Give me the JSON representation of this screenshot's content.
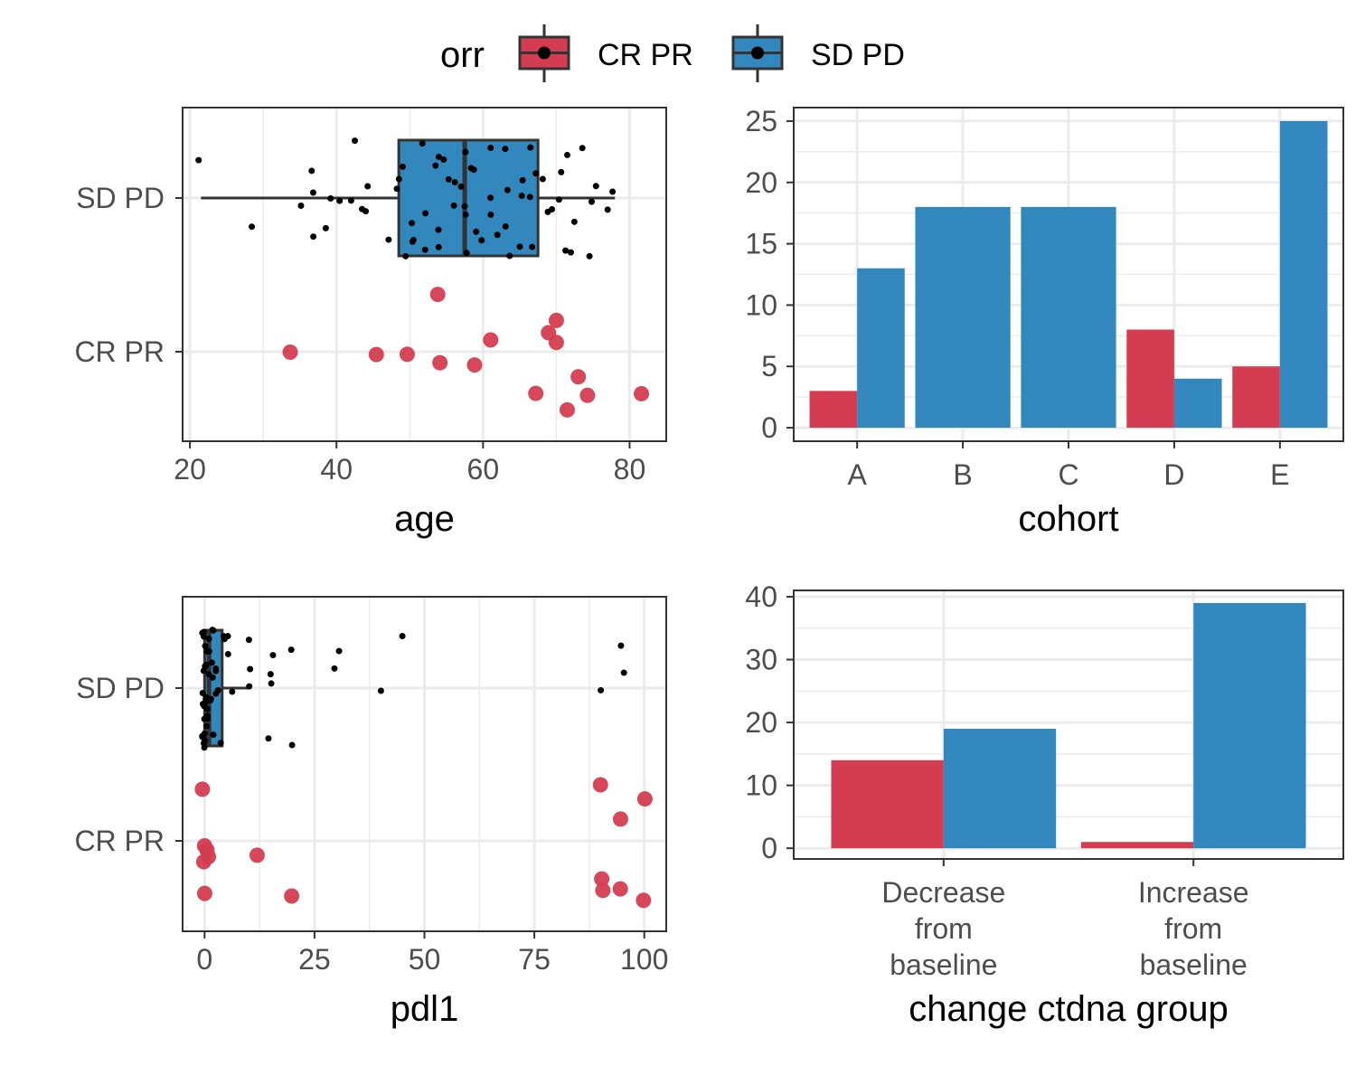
{
  "legend": {
    "title": "orr",
    "items": [
      {
        "label": "CR PR",
        "color": "#d43d51"
      },
      {
        "label": "SD PD",
        "color": "#3288bd"
      }
    ]
  },
  "colors": {
    "cr_pr": "#d43d51",
    "sd_pd": "#3288bd",
    "points_sd_pd": "#000000",
    "grid": "#ebebeb",
    "panel_border": "#333333"
  },
  "chart_data": [
    {
      "type": "boxplot",
      "xlabel": "age",
      "ylabel": "",
      "xlim": [
        19,
        85
      ],
      "xticks": [
        20,
        40,
        60,
        80
      ],
      "categories": [
        "CR PR",
        "SD PD"
      ],
      "boxes": [
        {
          "category": "SD PD",
          "min": 21.5,
          "q1": 48.5,
          "median": 57.5,
          "q3": 67.5,
          "max": 78
        }
      ],
      "points": [
        {
          "category": "CR PR",
          "values": [
            34,
            45,
            49.5,
            53.5,
            54.5,
            59,
            61.5,
            67.5,
            68.5,
            70,
            70.5,
            71,
            73,
            74.5,
            81.5
          ]
        },
        {
          "category": "SD PD",
          "values": [
            21.5,
            28,
            35,
            36.5,
            37,
            37,
            39,
            39.5,
            40,
            42,
            43,
            43,
            44,
            44.5,
            47,
            48,
            48,
            49,
            49.5,
            50,
            50,
            51,
            51.5,
            52,
            52,
            53,
            53.5,
            54,
            54.5,
            55,
            55,
            55.5,
            56,
            56.5,
            57,
            57,
            57.5,
            58,
            58.5,
            59,
            59,
            60,
            60.5,
            61,
            61.5,
            62,
            62.5,
            63,
            63.5,
            64,
            64.5,
            65,
            65.5,
            66,
            66.5,
            67,
            67.5,
            68,
            68.5,
            69,
            70,
            70.5,
            71,
            71.5,
            72,
            73,
            73.5,
            74,
            74.5,
            75,
            77,
            78
          ]
        }
      ]
    },
    {
      "type": "bar",
      "xlabel": "cohort",
      "ylabel": "",
      "categories": [
        "A",
        "B",
        "C",
        "D",
        "E"
      ],
      "ylim": [
        0,
        26
      ],
      "yticks": [
        0,
        5,
        10,
        15,
        20,
        25
      ],
      "series": [
        {
          "name": "CR PR",
          "values": [
            3,
            0,
            0,
            8,
            5
          ]
        },
        {
          "name": "SD PD",
          "values": [
            13,
            18,
            18,
            4,
            25
          ]
        }
      ]
    },
    {
      "type": "boxplot",
      "xlabel": "pdl1",
      "ylabel": "",
      "xlim": [
        -5,
        105
      ],
      "xticks": [
        0,
        25,
        50,
        75,
        100
      ],
      "categories": [
        "CR PR",
        "SD PD"
      ],
      "boxes": [
        {
          "category": "SD PD",
          "min": 0,
          "q1": 0,
          "median": 1,
          "q3": 4,
          "max": 10
        }
      ],
      "points": [
        {
          "category": "CR PR",
          "values": [
            0,
            0,
            0,
            0,
            0.5,
            1,
            12,
            20,
            90,
            90,
            90,
            95,
            95,
            100,
            100
          ]
        },
        {
          "category": "SD PD",
          "values": [
            0,
            0,
            0,
            0,
            0,
            0,
            0,
            0,
            0,
            0,
            0,
            0,
            0,
            0,
            0,
            0,
            0,
            0,
            0,
            0,
            0,
            0.5,
            0.5,
            0.5,
            1,
            1,
            1,
            1,
            1,
            1.5,
            1.5,
            2,
            2,
            2,
            2,
            2.5,
            3,
            3,
            3,
            3,
            4,
            4,
            4,
            5,
            5,
            6,
            10,
            10,
            10,
            15,
            15,
            15,
            16,
            20,
            20,
            30,
            30,
            40,
            45,
            90,
            95,
            95
          ]
        }
      ]
    },
    {
      "type": "bar",
      "xlabel": "change ctdna group",
      "ylabel": "",
      "categories": [
        [
          "Decrease",
          "from",
          "baseline"
        ],
        [
          "Increase",
          "from",
          "baseline"
        ]
      ],
      "ylim": [
        0,
        40
      ],
      "yticks": [
        0,
        10,
        20,
        30,
        40
      ],
      "series": [
        {
          "name": "CR PR",
          "values": [
            14,
            1
          ]
        },
        {
          "name": "SD PD",
          "values": [
            19,
            39
          ]
        }
      ]
    }
  ]
}
